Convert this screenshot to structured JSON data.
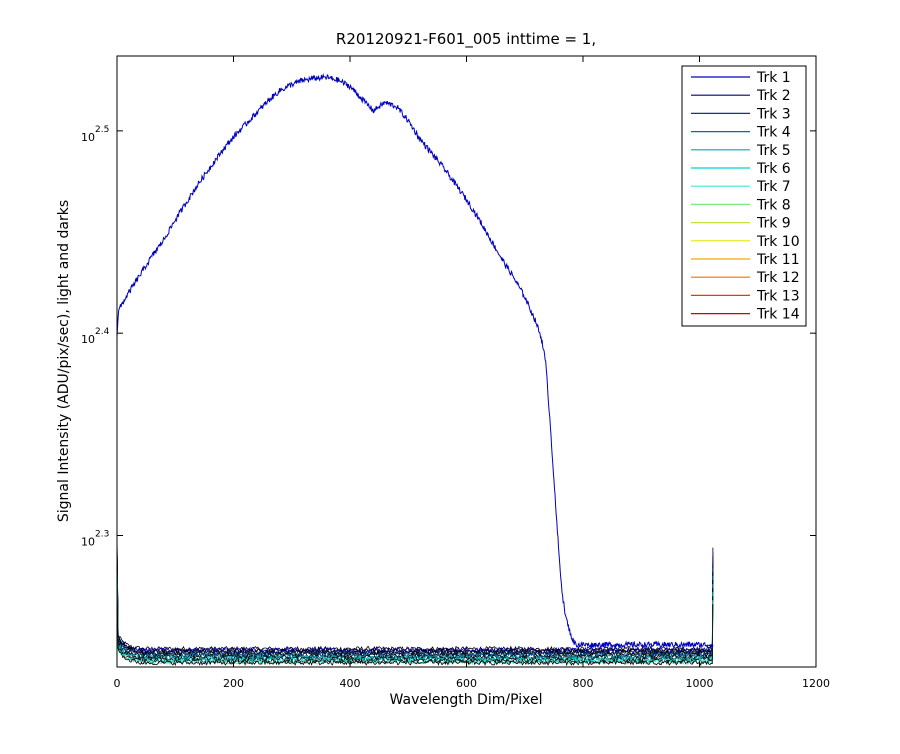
{
  "chart_data": {
    "type": "line",
    "title": "R20120921-F601_005 inttime = 1,",
    "xlabel": "Wavelength Dim/Pixel",
    "ylabel": "Signal Intensity (ADU/pix/sec), light and darks",
    "xlim": [
      0,
      1200
    ],
    "ylim": [
      2.235,
      2.537
    ],
    "yscale": "log10",
    "grid": false,
    "legend_position": "top-right",
    "x_ticks": [
      {
        "value": 0,
        "label": "0"
      },
      {
        "value": 200,
        "label": "200"
      },
      {
        "value": 400,
        "label": "400"
      },
      {
        "value": 600,
        "label": "600"
      },
      {
        "value": 800,
        "label": "800"
      },
      {
        "value": 1000,
        "label": "1000"
      },
      {
        "value": 1200,
        "label": "1200"
      }
    ],
    "y_ticks": [
      {
        "value": 2.3,
        "base": "10",
        "exp": "2.3"
      },
      {
        "value": 2.4,
        "base": "10",
        "exp": "2.4"
      },
      {
        "value": 2.5,
        "base": "10",
        "exp": "2.5"
      }
    ],
    "light_curve": {
      "series_index": 0,
      "x": [
        0,
        2,
        4,
        10,
        20,
        40,
        60,
        80,
        100,
        120,
        140,
        160,
        180,
        200,
        220,
        240,
        260,
        280,
        300,
        320,
        340,
        360,
        380,
        400,
        420,
        440,
        460,
        480,
        500,
        520,
        540,
        560,
        580,
        600,
        620,
        640,
        660,
        680,
        700,
        720,
        730,
        736,
        740,
        745,
        750,
        755,
        760,
        765,
        770,
        775,
        780,
        785,
        790,
        800,
        850,
        900,
        950,
        1000,
        1023
      ],
      "y": [
        2.399,
        2.409,
        2.412,
        2.415,
        2.42,
        2.429,
        2.438,
        2.446,
        2.456,
        2.465,
        2.474,
        2.482,
        2.49,
        2.497,
        2.503,
        2.509,
        2.515,
        2.52,
        2.523,
        2.525,
        2.526,
        2.5265,
        2.525,
        2.522,
        2.516,
        2.51,
        2.514,
        2.512,
        2.505,
        2.496,
        2.489,
        2.482,
        2.474,
        2.466,
        2.457,
        2.447,
        2.437,
        2.428,
        2.418,
        2.405,
        2.396,
        2.385,
        2.37,
        2.35,
        2.328,
        2.306,
        2.286,
        2.27,
        2.26,
        2.255,
        2.25,
        2.247,
        2.246,
        2.246,
        2.246,
        2.246,
        2.246,
        2.246,
        2.246
      ]
    },
    "dark_curves": {
      "x_range": [
        0,
        1023
      ],
      "start_spike": 2.3,
      "end_spike": 2.294,
      "levels": [
        2.244,
        2.2435,
        2.243,
        2.2425,
        2.242,
        2.2415,
        2.241,
        2.2405,
        2.24,
        2.2395,
        2.239,
        2.2385,
        2.238,
        2.2375,
        2.2371
      ]
    },
    "series": [
      {
        "name": "Trk 1",
        "color": "#0000bf"
      },
      {
        "name": "Trk 2",
        "color": "#00007f"
      },
      {
        "name": "Trk 3",
        "color": "#003f7f"
      },
      {
        "name": "Trk 4",
        "color": "#00719f"
      },
      {
        "name": "Trk 5",
        "color": "#00aabf"
      },
      {
        "name": "Trk 6",
        "color": "#00d0d0"
      },
      {
        "name": "Trk 7",
        "color": "#3fe8d0"
      },
      {
        "name": "Trk 8",
        "color": "#7fe87f"
      },
      {
        "name": "Trk 9",
        "color": "#bfe83f"
      },
      {
        "name": "Trk 10",
        "color": "#e8e800"
      },
      {
        "name": "Trk 11",
        "color": "#f0aa00"
      },
      {
        "name": "Trk 12",
        "color": "#f07000"
      },
      {
        "name": "Trk 13",
        "color": "#e83a00"
      },
      {
        "name": "Trk 14",
        "color": "#d00000"
      }
    ]
  }
}
